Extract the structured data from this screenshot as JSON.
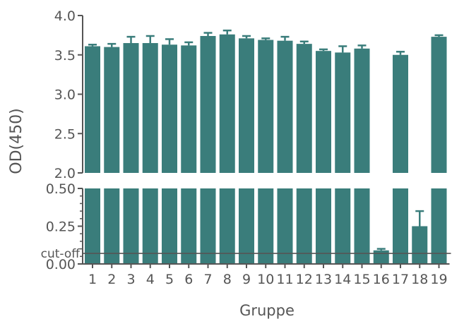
{
  "chart_data": {
    "type": "bar",
    "title": "",
    "xlabel": "Gruppe",
    "ylabel": "OD(450)",
    "categories": [
      "1",
      "2",
      "3",
      "4",
      "5",
      "6",
      "7",
      "8",
      "9",
      "10",
      "11",
      "12",
      "13",
      "14",
      "15",
      "16",
      "17",
      "18",
      "19"
    ],
    "values": [
      3.61,
      3.6,
      3.65,
      3.65,
      3.63,
      3.62,
      3.74,
      3.76,
      3.71,
      3.69,
      3.68,
      3.64,
      3.55,
      3.53,
      3.58,
      0.09,
      3.5,
      0.25,
      3.73
    ],
    "errors": [
      0.02,
      0.04,
      0.08,
      0.09,
      0.07,
      0.04,
      0.04,
      0.05,
      0.03,
      0.02,
      0.05,
      0.03,
      0.02,
      0.08,
      0.04,
      0.01,
      0.04,
      0.1,
      0.02
    ],
    "y_axis_break": true,
    "ylim_lower": [
      0,
      0.5
    ],
    "ylim_upper": [
      2.0,
      4.0
    ],
    "yticks_lower": [
      "0.00",
      "0.25",
      "0.50"
    ],
    "yticks_upper": [
      "2.0",
      "2.5",
      "3.0",
      "3.5",
      "4.0"
    ],
    "cutoff_label": "cut-off",
    "cutoff_value": 0.07,
    "grid": false,
    "bar_color": "#3a7d7b",
    "cutoff_line_color": "#555555"
  }
}
